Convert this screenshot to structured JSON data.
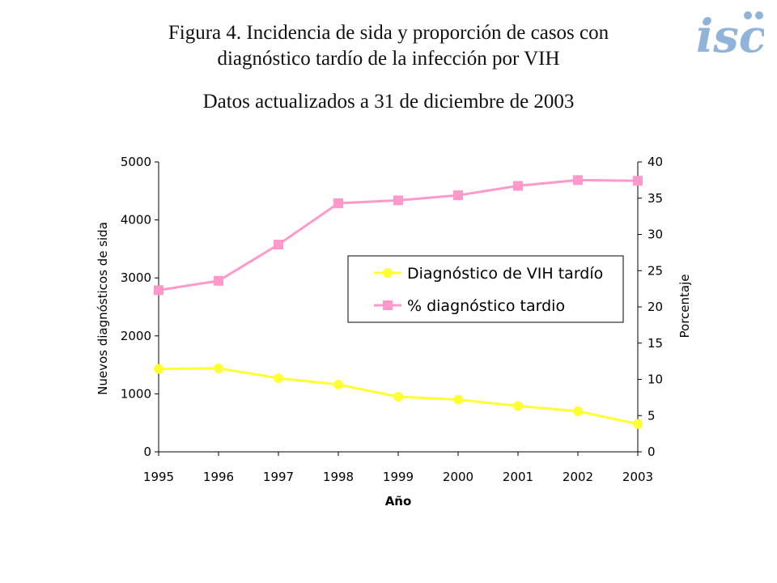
{
  "header": {
    "title_line1": "Figura 4. Incidencia de sida y proporción de casos con",
    "title_line2": "diagnóstico tardío de la infección por VIH",
    "subtitle": "Datos actualizados a 31 de diciembre de 2003",
    "logo_text": "isc",
    "logo_color": "#8fb3d9"
  },
  "chart_data": {
    "type": "line",
    "categories": [
      "1995",
      "1996",
      "1997",
      "1998",
      "1999",
      "2000",
      "2001",
      "2002",
      "2003"
    ],
    "xlabel": "Año",
    "ylabel_left": "Nuevos diagnósticos de sida",
    "ylabel_right": "Porcentaje",
    "ylim_left": [
      0,
      5000
    ],
    "yticks_left": [
      0,
      1000,
      2000,
      3000,
      4000,
      5000
    ],
    "ylim_right": [
      0,
      40
    ],
    "yticks_right": [
      0,
      5,
      10,
      15,
      20,
      25,
      30,
      35,
      40
    ],
    "grid": false,
    "legend_position": "center-right",
    "series": [
      {
        "name": "Diagnóstico de VIH tardío",
        "axis": "left",
        "marker": "circle",
        "color": "#ffff33",
        "values": [
          1430,
          1440,
          1270,
          1160,
          950,
          900,
          790,
          700,
          480
        ]
      },
      {
        "name": "% diagnóstico tardio",
        "axis": "right",
        "marker": "square",
        "color": "#ff99cc",
        "values": [
          22.3,
          23.6,
          28.6,
          34.3,
          34.7,
          35.4,
          36.7,
          37.5,
          37.4
        ]
      }
    ]
  }
}
